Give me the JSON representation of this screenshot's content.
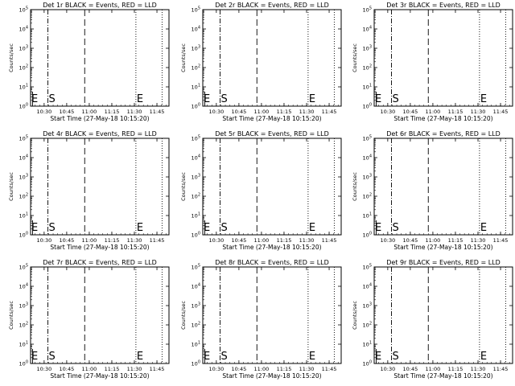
{
  "chart_data": [
    {
      "panel": "1r",
      "title": "Det 1r BLACK = Events, RED = LLD",
      "type": "line",
      "ylabel": "Counts/sec",
      "xlabel": "Start Time (27-May-18 10:15:20)",
      "x_tick_labels": [
        "10:30",
        "10:45",
        "11:00",
        "11:15",
        "11:30",
        "11:45"
      ],
      "y_tick_labels": [
        "10^0",
        "10^1",
        "10^2",
        "10^3",
        "10^4",
        "10^5"
      ],
      "y_scale": "log",
      "markers": [
        "S",
        "E"
      ],
      "series": []
    },
    {
      "panel": "2r",
      "title": "Det 2r BLACK = Events, RED = LLD",
      "type": "line",
      "ylabel": "Counts/sec",
      "xlabel": "Start Time (27-May-18 10:15:20)",
      "x_tick_labels": [
        "10:30",
        "10:45",
        "11:00",
        "11:15",
        "11:30",
        "11:45"
      ],
      "y_tick_labels": [
        "10^0",
        "10^1",
        "10^2",
        "10^3",
        "10^4",
        "10^5"
      ],
      "y_scale": "log",
      "markers": [
        "S",
        "E"
      ],
      "series": []
    },
    {
      "panel": "3r",
      "title": "Det 3r BLACK = Events, RED = LLD",
      "type": "line",
      "ylabel": "Counts/sec",
      "xlabel": "Start Time (27-May-18 10:15:20)",
      "x_tick_labels": [
        "10:30",
        "10:45",
        "11:00",
        "11:15",
        "11:30",
        "11:45"
      ],
      "y_tick_labels": [
        "10^0",
        "10^1",
        "10^2",
        "10^3",
        "10^4",
        "10^5"
      ],
      "y_scale": "log",
      "markers": [
        "S",
        "E"
      ],
      "series": []
    },
    {
      "panel": "4r",
      "title": "Det 4r BLACK = Events, RED = LLD",
      "type": "line",
      "ylabel": "Counts/sec",
      "xlabel": "Start Time (27-May-18 10:15:20)",
      "x_tick_labels": [
        "10:30",
        "10:45",
        "11:00",
        "11:15",
        "11:30",
        "11:45"
      ],
      "y_tick_labels": [
        "10^0",
        "10^1",
        "10^2",
        "10^3",
        "10^4",
        "10^5"
      ],
      "y_scale": "log",
      "markers": [
        "S",
        "E"
      ],
      "series": []
    },
    {
      "panel": "5r",
      "title": "Det 5r BLACK = Events, RED = LLD",
      "type": "line",
      "ylabel": "Counts/sec",
      "xlabel": "Start Time (27-May-18 10:15:20)",
      "x_tick_labels": [
        "10:30",
        "10:45",
        "11:00",
        "11:15",
        "11:30",
        "11:45"
      ],
      "y_tick_labels": [
        "10^0",
        "10^1",
        "10^2",
        "10^3",
        "10^4",
        "10^5"
      ],
      "y_scale": "log",
      "markers": [
        "S",
        "E"
      ],
      "series": []
    },
    {
      "panel": "6r",
      "title": "Det 6r BLACK = Events, RED = LLD",
      "type": "line",
      "ylabel": "Counts/sec",
      "xlabel": "Start Time (27-May-18 10:15:20)",
      "x_tick_labels": [
        "10:30",
        "10:45",
        "11:00",
        "11:15",
        "11:30",
        "11:45"
      ],
      "y_tick_labels": [
        "10^0",
        "10^1",
        "10^2",
        "10^3",
        "10^4",
        "10^5"
      ],
      "y_scale": "log",
      "markers": [
        "S",
        "E"
      ],
      "series": []
    },
    {
      "panel": "7r",
      "title": "Det 7r BLACK = Events, RED = LLD",
      "type": "line",
      "ylabel": "Counts/sec",
      "xlabel": "Start Time (27-May-18 10:15:20)",
      "x_tick_labels": [
        "10:30",
        "10:45",
        "11:00",
        "11:15",
        "11:30",
        "11:45"
      ],
      "y_tick_labels": [
        "10^0",
        "10^1",
        "10^2",
        "10^3",
        "10^4",
        "10^5"
      ],
      "y_scale": "log",
      "markers": [
        "S",
        "E"
      ],
      "series": []
    },
    {
      "panel": "8r",
      "title": "Det 8r BLACK = Events, RED = LLD",
      "type": "line",
      "ylabel": "Counts/sec",
      "xlabel": "Start Time (27-May-18 10:15:20)",
      "x_tick_labels": [
        "10:30",
        "10:45",
        "11:00",
        "11:15",
        "11:30",
        "11:45"
      ],
      "y_tick_labels": [
        "10^0",
        "10^1",
        "10^2",
        "10^3",
        "10^4",
        "10^5"
      ],
      "y_scale": "log",
      "markers": [
        "S",
        "E"
      ],
      "series": []
    },
    {
      "panel": "9r",
      "title": "Det 9r BLACK = Events, RED = LLD",
      "type": "line",
      "ylabel": "Counts/sec",
      "xlabel": "Start Time (27-May-18 10:15:20)",
      "x_tick_labels": [
        "10:30",
        "10:45",
        "11:00",
        "11:15",
        "11:30",
        "11:45"
      ],
      "y_tick_labels": [
        "10^0",
        "10^1",
        "10^2",
        "10^3",
        "10^4",
        "10^5"
      ],
      "y_scale": "log",
      "markers": [
        "S",
        "E"
      ],
      "series": []
    }
  ]
}
